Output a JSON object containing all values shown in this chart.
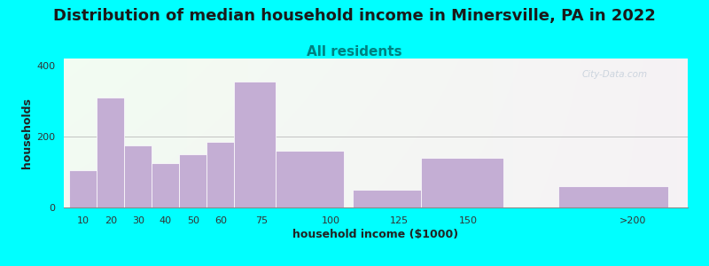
{
  "title": "Distribution of median household income in Minersville, PA in 2022",
  "subtitle": "All residents",
  "xlabel": "household income ($1000)",
  "ylabel": "households",
  "bar_labels": [
    "10",
    "20",
    "30",
    "40",
    "50",
    "60",
    "75",
    "100",
    "125",
    "150",
    ">200"
  ],
  "bar_values": [
    105,
    310,
    175,
    125,
    150,
    185,
    355,
    160,
    50,
    140,
    60
  ],
  "bar_left_edges": [
    5,
    15,
    25,
    35,
    45,
    55,
    65,
    80,
    108,
    133,
    183
  ],
  "bar_widths": [
    10,
    10,
    10,
    10,
    10,
    10,
    15,
    25,
    25,
    30,
    40
  ],
  "bar_color": "#C4AED4",
  "ylim": [
    0,
    420
  ],
  "yticks": [
    0,
    200,
    400
  ],
  "xlim": [
    3,
    230
  ],
  "xtick_positions": [
    10,
    20,
    30,
    40,
    50,
    60,
    75,
    100,
    125,
    150,
    210
  ],
  "background_color": "#00FFFF",
  "title_fontsize": 13,
  "subtitle_fontsize": 11,
  "subtitle_color": "#008080",
  "axis_label_fontsize": 9,
  "tick_fontsize": 8,
  "watermark": "City-Data.com"
}
